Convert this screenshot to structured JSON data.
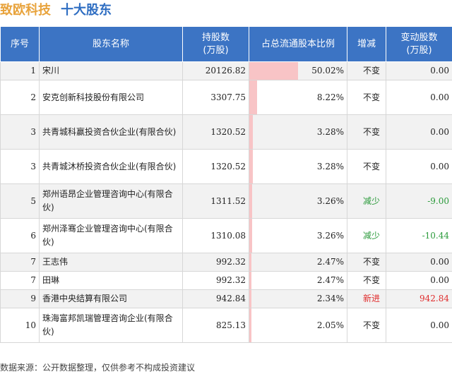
{
  "header": {
    "company": "致欧科技",
    "subtitle": "十大股东"
  },
  "table": {
    "columns": [
      "序号",
      "股东名称",
      "持股数\n(万股)",
      "占总流通股本比例",
      "增减",
      "变动股数\n(万股)"
    ],
    "rows": [
      {
        "idx": "1",
        "name": "宋川",
        "shares": "20126.82",
        "pct_text": "50.02%",
        "pct": 0.5002,
        "change": "不变",
        "delta": "0.00",
        "trend": "same"
      },
      {
        "idx": "2",
        "name": "安克创新科技股份有限公司",
        "shares": "3307.75",
        "pct_text": "8.22%",
        "pct": 0.0822,
        "change": "不变",
        "delta": "0.00",
        "trend": "same"
      },
      {
        "idx": "3",
        "name": "共青城科赢投资合伙企业(有限合伙)",
        "shares": "1320.52",
        "pct_text": "3.28%",
        "pct": 0.0328,
        "change": "不变",
        "delta": "0.00",
        "trend": "same"
      },
      {
        "idx": "3",
        "name": "共青城沐桥投资合伙企业(有限合伙)",
        "shares": "1320.52",
        "pct_text": "3.28%",
        "pct": 0.0328,
        "change": "不变",
        "delta": "0.00",
        "trend": "same"
      },
      {
        "idx": "5",
        "name": "郑州语昂企业管理咨询中心(有限合伙)",
        "shares": "1311.52",
        "pct_text": "3.26%",
        "pct": 0.0326,
        "change": "减少",
        "delta": "-9.00",
        "trend": "down"
      },
      {
        "idx": "6",
        "name": "郑州泽骞企业管理咨询中心(有限合伙)",
        "shares": "1310.08",
        "pct_text": "3.26%",
        "pct": 0.0326,
        "change": "减少",
        "delta": "-10.44",
        "trend": "down"
      },
      {
        "idx": "7",
        "name": "王志伟",
        "shares": "992.32",
        "pct_text": "2.47%",
        "pct": 0.0247,
        "change": "不变",
        "delta": "0.00",
        "trend": "same"
      },
      {
        "idx": "7",
        "name": "田琳",
        "shares": "992.32",
        "pct_text": "2.47%",
        "pct": 0.0247,
        "change": "不变",
        "delta": "0.00",
        "trend": "same"
      },
      {
        "idx": "9",
        "name": "香港中央结算有限公司",
        "shares": "942.84",
        "pct_text": "2.34%",
        "pct": 0.0234,
        "change": "新进",
        "delta": "942.84",
        "trend": "up"
      },
      {
        "idx": "10",
        "name": "珠海富邦凯瑞管理咨询企业(有限合伙)",
        "shares": "825.13",
        "pct_text": "2.05%",
        "pct": 0.0205,
        "change": "不变",
        "delta": "0.00",
        "trend": "same"
      }
    ]
  },
  "footer": "数据来源：公开数据整理，仅供参考不构成投资建议",
  "colors": {
    "header_bg": "#3c74c4",
    "bar": "#f8c4c6",
    "up": "#e02c2c",
    "down": "#2a9a3a",
    "title_company": "#e8a33c",
    "title_sub": "#2f6ec2"
  }
}
